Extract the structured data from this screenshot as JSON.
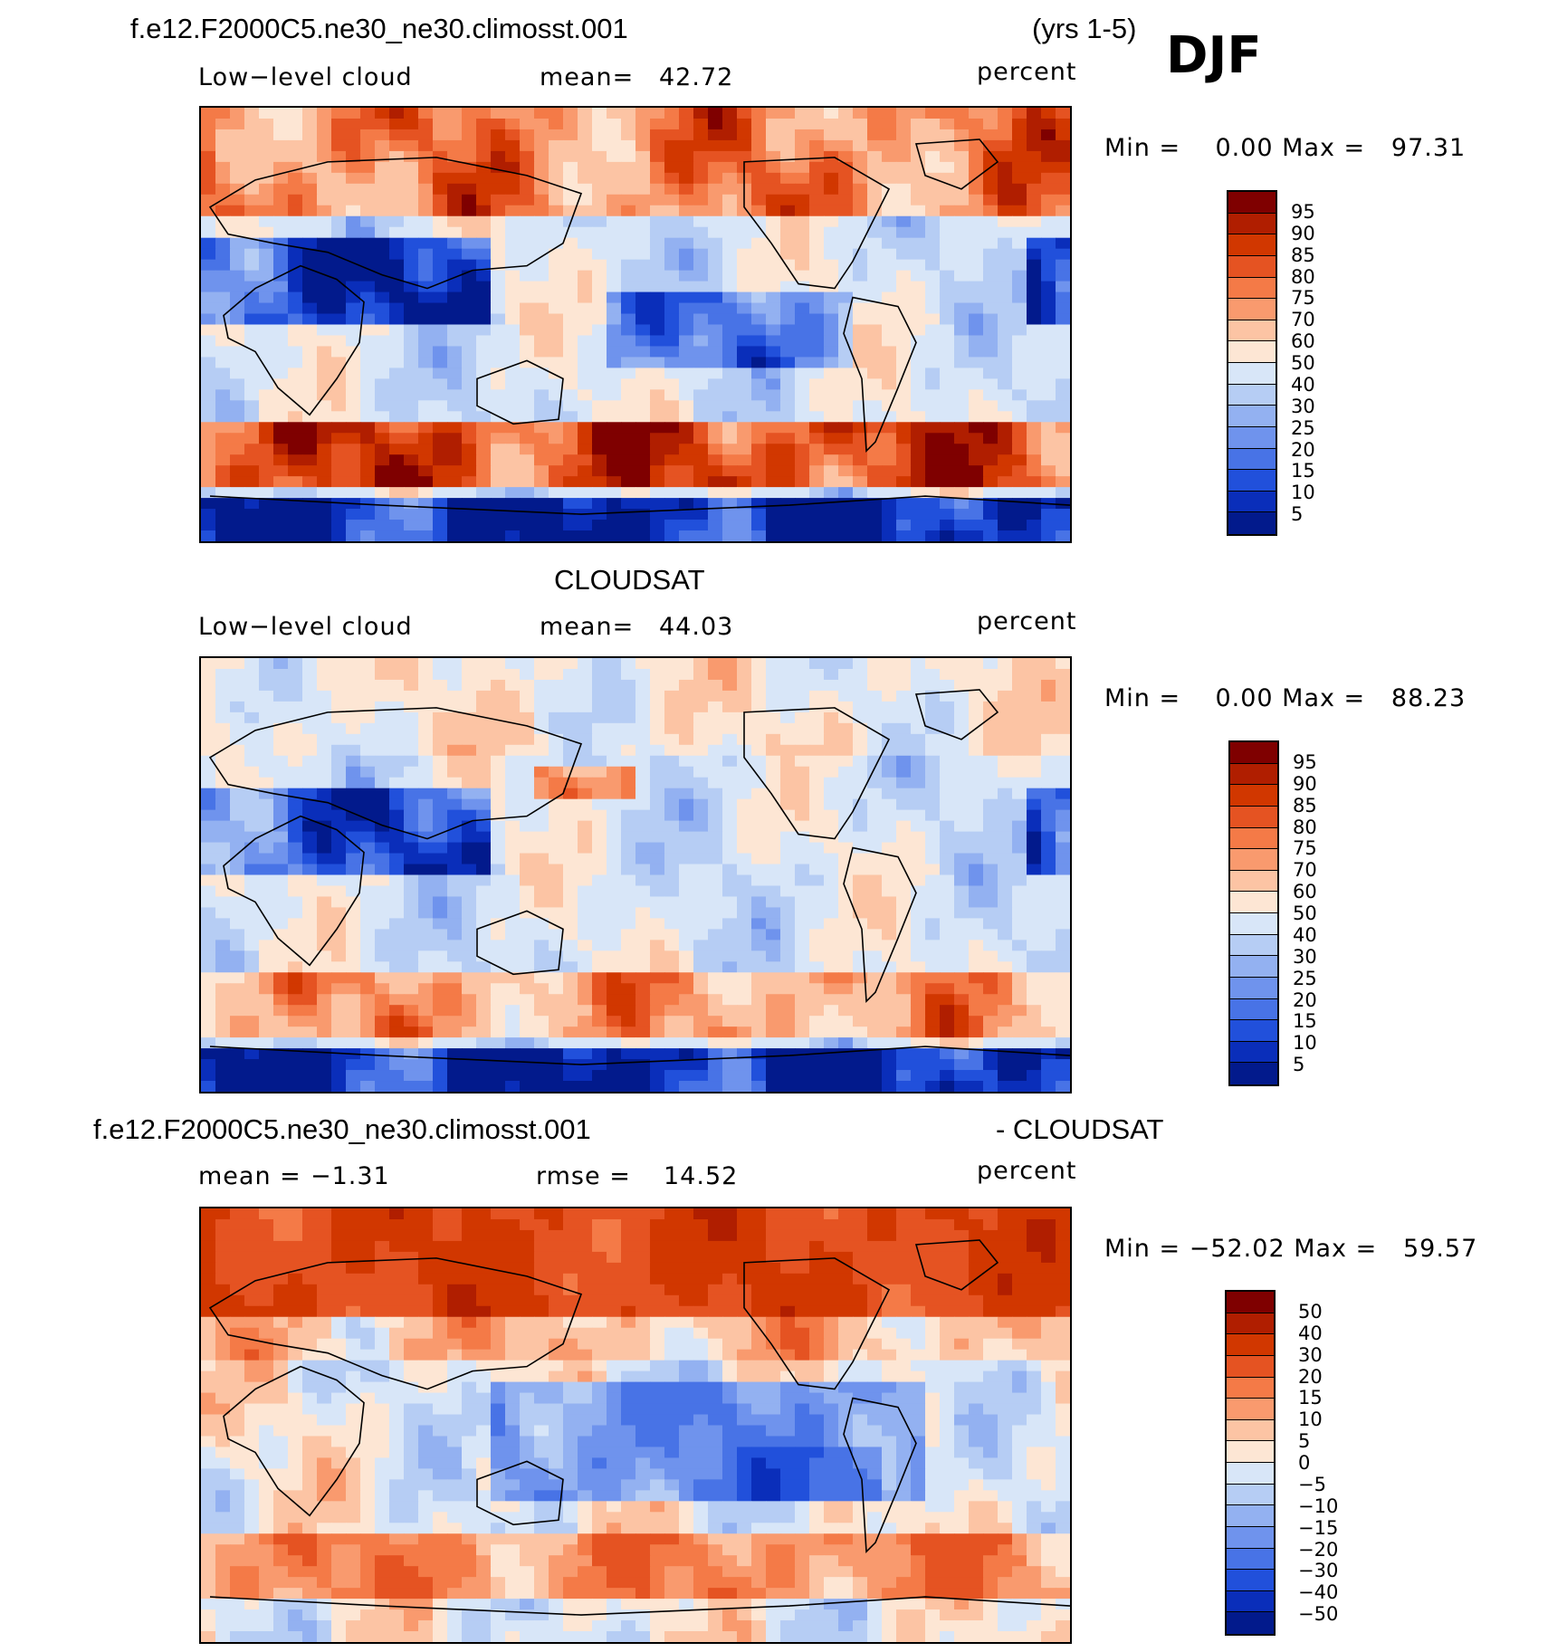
{
  "header": {
    "case_name": "f.e12.F2000C5.ne30_ne30.climosst.001",
    "years": "(yrs 1-5)",
    "season": "DJF"
  },
  "panel1": {
    "variable": "Low−level cloud",
    "mean_label": "mean=",
    "mean_value": "42.72",
    "units": "percent",
    "minmax": "Min =    0.00 Max =   97.31",
    "colorbar_labels": [
      "95",
      "90",
      "85",
      "80",
      "75",
      "70",
      "60",
      "50",
      "40",
      "30",
      "25",
      "20",
      "15",
      "10",
      "5"
    ]
  },
  "panel2": {
    "title": "CLOUDSAT",
    "variable": "Low−level cloud",
    "mean_label": "mean=",
    "mean_value": "44.03",
    "units": "percent",
    "minmax": "Min =    0.00 Max =   88.23",
    "colorbar_labels": [
      "95",
      "90",
      "85",
      "80",
      "75",
      "70",
      "60",
      "50",
      "40",
      "30",
      "25",
      "20",
      "15",
      "10",
      "5"
    ]
  },
  "panel3": {
    "title_left": "f.e12.F2000C5.ne30_ne30.climosst.001",
    "title_right": "- CLOUDSAT",
    "mean_label": "mean =",
    "mean_value": "−1.31",
    "rmse_label": "rmse =",
    "rmse_value": "14.52",
    "units": "percent",
    "minmax": "Min = −52.02 Max =   59.57",
    "colorbar_labels": [
      "50",
      "40",
      "30",
      "20",
      "15",
      "10",
      "5",
      "0",
      "−5",
      "−10",
      "−15",
      "−20",
      "−30",
      "−40",
      "−50"
    ]
  },
  "colors": {
    "colorbar_16": [
      "#7f0000",
      "#b01e00",
      "#d13700",
      "#e55322",
      "#f47a47",
      "#f99a6e",
      "#fcc4a4",
      "#fde6d4",
      "#d8e6f8",
      "#b6cdf4",
      "#93b1f1",
      "#6f93ed",
      "#4873e6",
      "#2150db",
      "#0a2eba",
      "#021a8c"
    ],
    "land_outline": "#000000"
  }
}
